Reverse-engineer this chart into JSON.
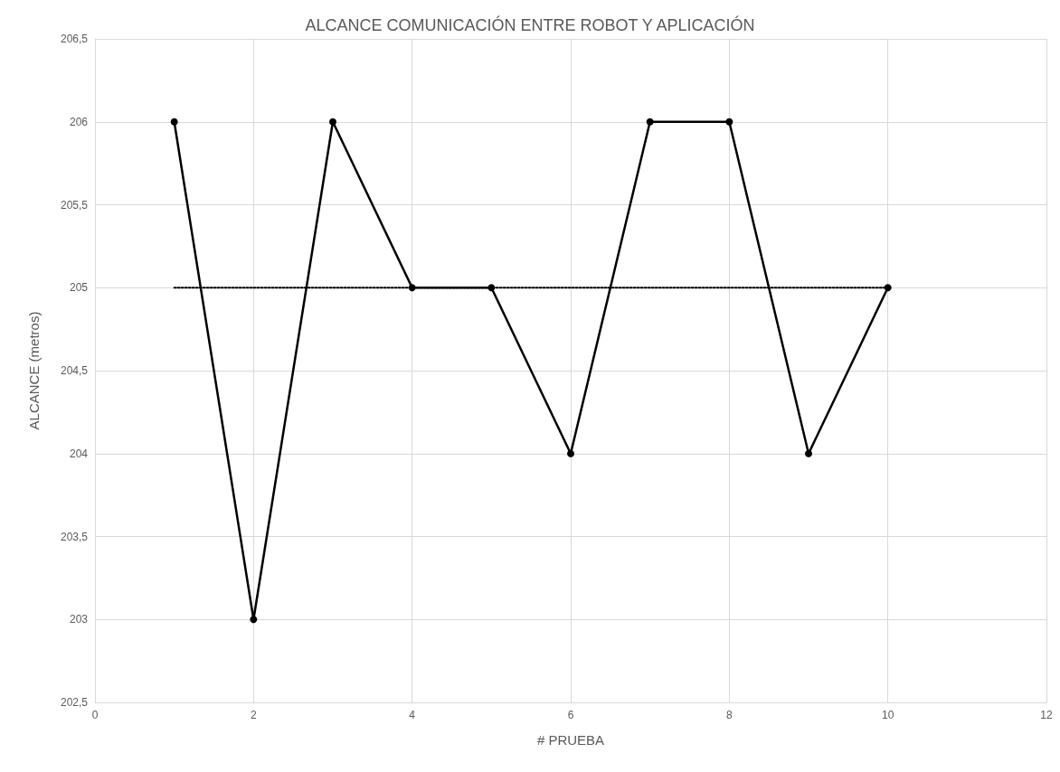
{
  "chart_data": {
    "type": "line",
    "title": "ALCANCE COMUNICACIÓN ENTRE ROBOT Y APLICACIÓN",
    "xlabel": "# PRUEBA",
    "ylabel": "ALCANCE (metros)",
    "x": [
      1,
      2,
      3,
      4,
      5,
      6,
      7,
      8,
      9,
      10
    ],
    "series": [
      {
        "color": "#000000",
        "values": [
          206,
          203,
          206,
          205,
          205,
          204,
          206,
          206,
          204,
          205
        ],
        "marker": "circle",
        "line_style": "solid"
      },
      {
        "type": "line",
        "color": "#000000",
        "x": [
          1,
          10
        ],
        "values": [
          205,
          205
        ],
        "marker": "none",
        "line_style": "dotted"
      }
    ],
    "xlim": [
      0,
      12
    ],
    "xticks": [
      0,
      2,
      4,
      6,
      8,
      10,
      12
    ],
    "ylim": [
      202.5,
      206.5
    ],
    "yticks": [
      {
        "value": 202.5,
        "label": "202,5"
      },
      203,
      {
        "value": 203.5,
        "label": "203,5"
      },
      204,
      {
        "value": 204.5,
        "label": "204,5"
      },
      205,
      {
        "value": 205.5,
        "label": "205,5"
      },
      206,
      {
        "value": 206.5,
        "label": "206,5"
      }
    ],
    "grid": true
  }
}
